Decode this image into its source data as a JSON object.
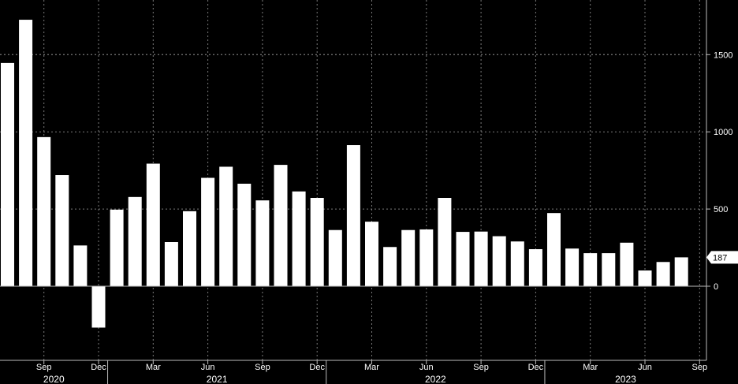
{
  "chart_data": {
    "type": "bar",
    "title": "",
    "xlabel": "",
    "ylabel": "",
    "ylim": [
      -480,
      1820
    ],
    "yticks": [
      0,
      500,
      1000,
      1500
    ],
    "categories": [
      "2020-07",
      "2020-08",
      "2020-09",
      "2020-10",
      "2020-11",
      "2020-12",
      "2021-01",
      "2021-02",
      "2021-03",
      "2021-04",
      "2021-05",
      "2021-06",
      "2021-07",
      "2021-08",
      "2021-09",
      "2021-10",
      "2021-11",
      "2021-12",
      "2022-01",
      "2022-02",
      "2022-03",
      "2022-04",
      "2022-05",
      "2022-06",
      "2022-07",
      "2022-08",
      "2022-09",
      "2022-10",
      "2022-11",
      "2022-12",
      "2023-01",
      "2023-02",
      "2023-03",
      "2023-04",
      "2023-05",
      "2023-06",
      "2023-07",
      "2023-08"
    ],
    "values": [
      1446,
      1726,
      966,
      720,
      264,
      -268,
      496,
      578,
      794,
      286,
      486,
      702,
      774,
      664,
      556,
      786,
      614,
      572,
      364,
      914,
      418,
      254,
      364,
      368,
      572,
      352,
      354,
      324,
      290,
      240,
      474,
      244,
      214,
      214,
      282,
      102,
      157,
      187
    ],
    "last_value_label": "187",
    "month_ticks": [
      {
        "index": 2,
        "label": "Sep"
      },
      {
        "index": 5,
        "label": "Dec"
      },
      {
        "index": 8,
        "label": "Mar"
      },
      {
        "index": 11,
        "label": "Jun"
      },
      {
        "index": 14,
        "label": "Sep"
      },
      {
        "index": 17,
        "label": "Dec"
      },
      {
        "index": 20,
        "label": "Mar"
      },
      {
        "index": 23,
        "label": "Jun"
      },
      {
        "index": 26,
        "label": "Sep"
      },
      {
        "index": 29,
        "label": "Dec"
      },
      {
        "index": 32,
        "label": "Mar"
      },
      {
        "index": 35,
        "label": "Jun"
      },
      {
        "index": 38,
        "label": "Sep"
      }
    ],
    "year_labels": [
      {
        "label": "2020",
        "start_index": 0,
        "end_index": 5
      },
      {
        "label": "2021",
        "start_index": 6,
        "end_index": 17
      },
      {
        "label": "2022",
        "start_index": 18,
        "end_index": 29
      },
      {
        "label": "2023",
        "start_index": 30,
        "end_index": 38
      }
    ],
    "grid": true,
    "colors": {
      "background": "#000000",
      "bar": "#ffffff",
      "grid": "#7a7a7a",
      "text": "#ffffff"
    }
  }
}
